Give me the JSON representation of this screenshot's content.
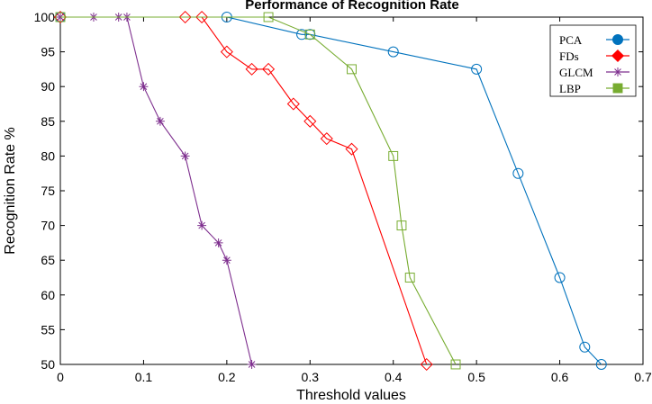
{
  "chart_data": {
    "type": "line",
    "title": "Performance of Recognition Rate",
    "xlabel": "Threshold values",
    "ylabel": "Recognition Rate %",
    "xlim": [
      0,
      0.7
    ],
    "ylim": [
      50,
      100
    ],
    "xticks": [
      0,
      0.1,
      0.2,
      0.3,
      0.4,
      0.5,
      0.6,
      0.7
    ],
    "xtick_labels": [
      "0",
      "0.1",
      "0.2",
      "0.3",
      "0.4",
      "0.5",
      "0.6",
      "0.7"
    ],
    "yticks": [
      50,
      55,
      60,
      65,
      70,
      75,
      80,
      85,
      90,
      95,
      100
    ],
    "ytick_labels": [
      "50",
      "55",
      "60",
      "65",
      "70",
      "75",
      "80",
      "85",
      "90",
      "95",
      "100"
    ],
    "grid": false,
    "legend_position": "top-right",
    "series": [
      {
        "name": "PCA",
        "color": "#0072BD",
        "marker": "circle",
        "x": [
          0,
          0.2,
          0.29,
          0.3,
          0.4,
          0.5,
          0.55,
          0.6,
          0.63,
          0.65
        ],
        "y": [
          100,
          100,
          97.5,
          97.5,
          95,
          92.5,
          77.5,
          62.5,
          52.5,
          50
        ]
      },
      {
        "name": "FDs",
        "color": "#FF0000",
        "marker": "diamond",
        "x": [
          0,
          0.15,
          0.17,
          0.2,
          0.23,
          0.25,
          0.28,
          0.3,
          0.32,
          0.35,
          0.44
        ],
        "y": [
          100,
          100,
          100,
          95,
          92.5,
          92.5,
          87.5,
          85,
          82.5,
          81,
          50
        ]
      },
      {
        "name": "GLCM",
        "color": "#7E2F8E",
        "marker": "asterisk",
        "x": [
          0,
          0.04,
          0.07,
          0.08,
          0.1,
          0.12,
          0.15,
          0.17,
          0.19,
          0.2,
          0.23
        ],
        "y": [
          100,
          100,
          100,
          100,
          90,
          85,
          80,
          70,
          67.5,
          65,
          50
        ]
      },
      {
        "name": "LBP",
        "color": "#77AC30",
        "marker": "square",
        "x": [
          0,
          0.25,
          0.3,
          0.35,
          0.4,
          0.41,
          0.42,
          0.475
        ],
        "y": [
          100,
          100,
          97.5,
          92.5,
          80,
          70,
          62.5,
          50
        ]
      }
    ]
  }
}
